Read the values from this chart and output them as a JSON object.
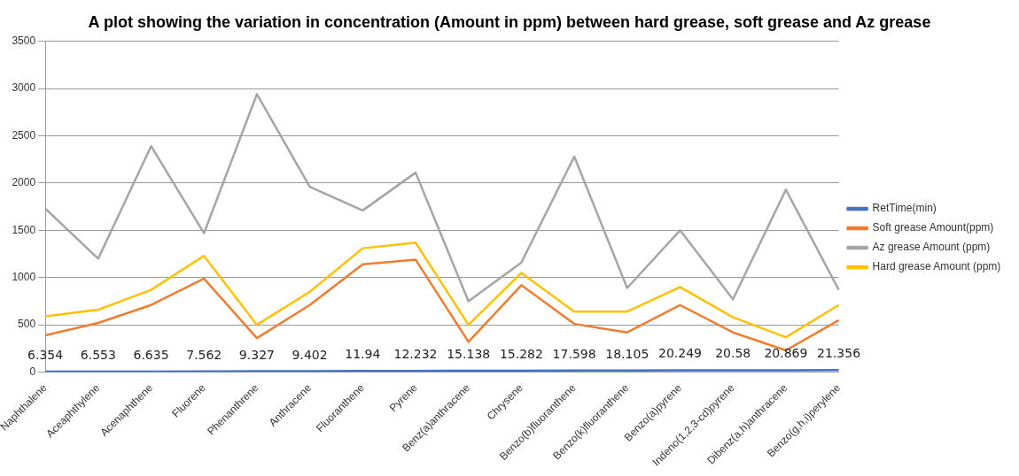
{
  "chart_data": {
    "type": "line",
    "title": "A plot showing the variation in concentration (Amount in ppm) between hard grease, soft grease and Az grease",
    "categories": [
      "Naphthalene",
      "Aceaphthylene",
      "Acenaphthene",
      "Fluorene",
      "Phenanthrene",
      "Anthracene",
      "Fluoranthene",
      "Pyrene",
      "Benz(a)anthracene",
      "Chrysene",
      "Benzo(b)fluoranthene",
      "Benzo(k)fluoranthene",
      "Benzo(a)pyrene",
      "Indeno(1,2,3-cd)pyrene",
      "Dibenz(a,h)anthracene",
      "Benzo(g,h,i)perylene"
    ],
    "series": [
      {
        "name": "RetTime(min)",
        "color": "#4472c4",
        "values": [
          6.354,
          6.553,
          6.635,
          7.562,
          9.327,
          9.402,
          11.94,
          12.232,
          15.138,
          15.282,
          17.598,
          18.105,
          20.249,
          20.58,
          20.869,
          21.356
        ],
        "value_labels": [
          "6.354",
          "6.553",
          "6.635",
          "7.562",
          "9.327",
          "9.402",
          "11.94",
          "12.232",
          "15.138",
          "15.282",
          "17.598",
          "18.105",
          "20.249",
          "20.58",
          "20.869",
          "21.356"
        ]
      },
      {
        "name": "Soft grease Amount(ppm)",
        "color": "#ed7d31",
        "values": [
          390,
          520,
          710,
          990,
          360,
          710,
          1140,
          1190,
          320,
          920,
          510,
          420,
          710,
          420,
          230,
          550
        ]
      },
      {
        "name": "Az grease Amount (ppm)",
        "color": "#a5a5a5",
        "values": [
          1730,
          1200,
          2390,
          1470,
          2940,
          1960,
          1710,
          2110,
          750,
          1160,
          2280,
          890,
          1500,
          770,
          1930,
          870
        ]
      },
      {
        "name": "Hard grease Amount (ppm)",
        "color": "#ffc000",
        "values": [
          590,
          660,
          870,
          1230,
          500,
          850,
          1310,
          1370,
          500,
          1050,
          640,
          640,
          900,
          580,
          370,
          710
        ]
      }
    ],
    "ylim": [
      0,
      3500
    ],
    "yticks": [
      0,
      500,
      1000,
      1500,
      2000,
      2500,
      3000,
      3500
    ],
    "grid": "y",
    "legend": "right",
    "marker": "none"
  }
}
